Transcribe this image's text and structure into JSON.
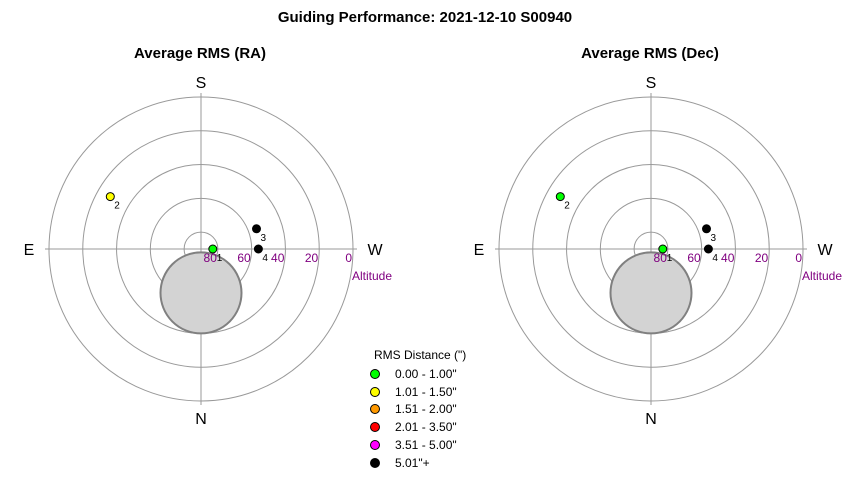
{
  "title": "Guiding Performance: 2021-12-10 S00940",
  "colors": {
    "grid": "#999999",
    "altitude_label": "#800080",
    "moon_fill": "#d3d3d3",
    "moon_stroke": "#808080"
  },
  "chart_data": [
    {
      "type": "scatter",
      "title": "Average RMS (RA)",
      "projection": "polar-altitude-azimuth",
      "directions": {
        "top": "S",
        "bottom": "N",
        "left": "E",
        "right": "W"
      },
      "radial_axis_label": "Altitude",
      "altitude_ticks": [
        "80",
        "60",
        "40",
        "20",
        "0"
      ],
      "altitude_range": [
        90,
        0
      ],
      "grid": true,
      "points": [
        {
          "label": "1",
          "azimuth": 90,
          "altitude": 83,
          "rms_class": "0.00 - 1.00\""
        },
        {
          "label": "2",
          "azimuth": 300,
          "altitude": 28,
          "rms_class": "1.01 - 1.50\""
        },
        {
          "label": "3",
          "azimuth": 70,
          "altitude": 55,
          "rms_class": "5.01\"+"
        },
        {
          "label": "4",
          "azimuth": 90,
          "altitude": 56,
          "rms_class": "5.01\"+"
        }
      ],
      "moon": {
        "azimuth": 0,
        "altitude": 64,
        "angular_radius_deg": 24
      }
    },
    {
      "type": "scatter",
      "title": "Average RMS (Dec)",
      "projection": "polar-altitude-azimuth",
      "directions": {
        "top": "S",
        "bottom": "N",
        "left": "E",
        "right": "W"
      },
      "radial_axis_label": "Altitude",
      "altitude_ticks": [
        "80",
        "60",
        "40",
        "20",
        "0"
      ],
      "altitude_range": [
        90,
        0
      ],
      "grid": true,
      "points": [
        {
          "label": "1",
          "azimuth": 90,
          "altitude": 83,
          "rms_class": "0.00 - 1.00\""
        },
        {
          "label": "2",
          "azimuth": 300,
          "altitude": 28,
          "rms_class": "0.00 - 1.00\""
        },
        {
          "label": "3",
          "azimuth": 70,
          "altitude": 55,
          "rms_class": "5.01\"+"
        },
        {
          "label": "4",
          "azimuth": 90,
          "altitude": 56,
          "rms_class": "5.01\"+"
        }
      ],
      "moon": {
        "azimuth": 0,
        "altitude": 64,
        "angular_radius_deg": 24
      }
    }
  ],
  "legend": {
    "title": "RMS Distance (\")",
    "placement": "bottom-center",
    "items": [
      {
        "label": "0.00 - 1.00\"",
        "color": "#00ff00"
      },
      {
        "label": "1.01 - 1.50\"",
        "color": "#ffff00"
      },
      {
        "label": "1.51 - 2.00\"",
        "color": "#ff9900"
      },
      {
        "label": "2.01 - 3.50\"",
        "color": "#ff0000"
      },
      {
        "label": "3.51 - 5.00\"",
        "color": "#ff00ff"
      },
      {
        "label": "5.01\"+",
        "color": "#000000"
      }
    ]
  }
}
